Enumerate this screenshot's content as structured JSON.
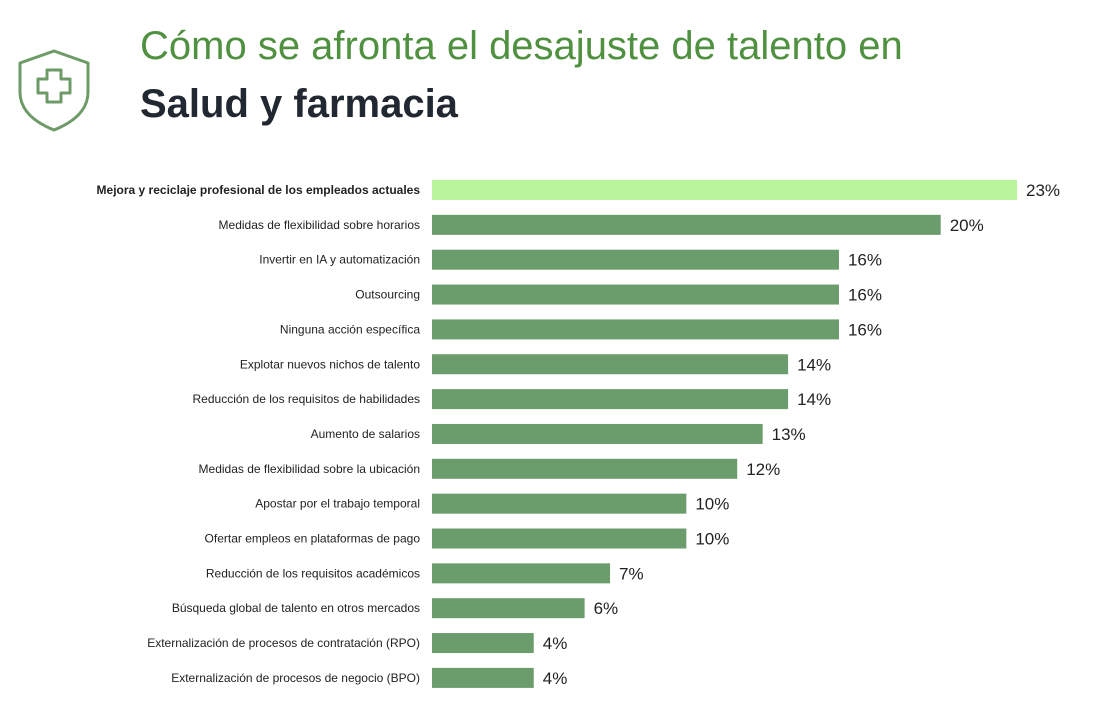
{
  "colors": {
    "title_accent": "#4f9140",
    "title_dark": "#222831",
    "icon": "#6e9a68",
    "bar": "#6a9d6b",
    "bar_highlight": "#b9f59a",
    "text": "#222222"
  },
  "header": {
    "icon": "shield-medical-cross-icon",
    "title_line1": "Cómo se afronta el desajuste de talento en",
    "title_line2": "Salud y farmacia"
  },
  "chart_data": {
    "type": "bar",
    "orientation": "horizontal",
    "value_suffix": "%",
    "highlight_index": 0,
    "xlim": [
      0,
      23
    ],
    "grid": false,
    "legend": "none",
    "categories": [
      "Mejora y reciclaje profesional de los empleados actuales",
      "Medidas de flexibilidad sobre horarios",
      "Invertir en IA y automatización",
      "Outsourcing",
      "Ninguna acción específica",
      "Explotar nuevos nichos de talento",
      "Reducción de los requisitos de habilidades",
      "Aumento de salarios",
      "Medidas de flexibilidad sobre la ubicación",
      "Apostar por el trabajo temporal",
      "Ofertar empleos en plataformas de pago",
      "Reducción de los requisitos académicos",
      "Búsqueda global de talento en otros mercados",
      "Externalización de procesos de contratación (RPO)",
      "Externalización de procesos de negocio (BPO)"
    ],
    "values": [
      23,
      20,
      16,
      16,
      16,
      14,
      14,
      13,
      12,
      10,
      10,
      7,
      6,
      4,
      4
    ],
    "value_labels": [
      "23%",
      "20%",
      "16%",
      "16%",
      "16%",
      "14%",
      "14%",
      "13%",
      "12%",
      "10%",
      "10%",
      "7%",
      "6%",
      "4%",
      "4%"
    ]
  }
}
